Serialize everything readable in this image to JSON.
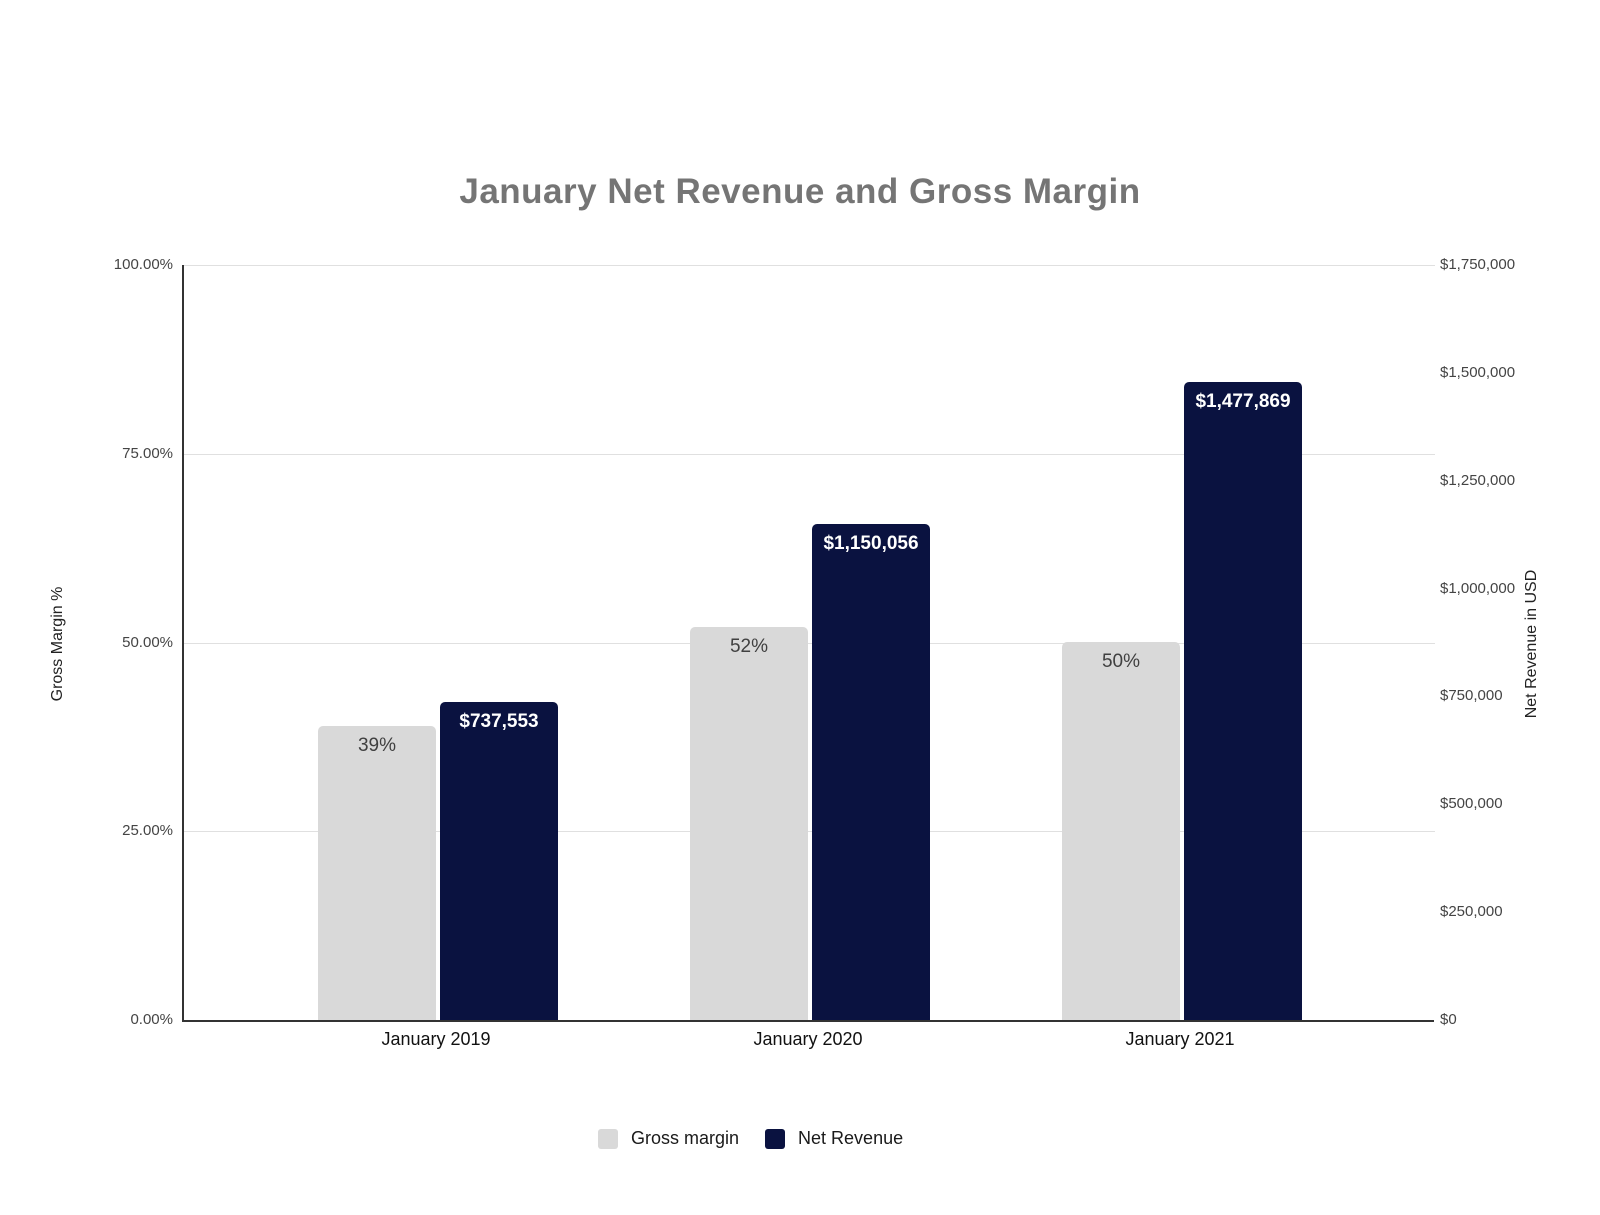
{
  "chart_data": {
    "type": "bar",
    "title": "January Net Revenue and Gross Margin",
    "categories": [
      "January 2019",
      "January 2020",
      "January 2021"
    ],
    "series": [
      {
        "name": "Gross margin",
        "axis": "left",
        "values": [
          39,
          52,
          50
        ],
        "unit": "percent",
        "labels": [
          "39%",
          "52%",
          "50%"
        ],
        "color": "#d9d9d9",
        "label_color": "#404040",
        "label_weight": "400"
      },
      {
        "name": "Net Revenue",
        "axis": "right",
        "values": [
          737553,
          1150056,
          1477869
        ],
        "unit": "USD",
        "labels": [
          "$737,553",
          "$1,150,056",
          "$1,477,869"
        ],
        "color": "#0a1240",
        "label_color": "#ffffff",
        "label_weight": "700"
      }
    ],
    "left_axis": {
      "title": "Gross Margin %",
      "range": [
        0,
        100
      ],
      "tick_labels": [
        "100.00%",
        "75.00%",
        "50.00%",
        "25.00%",
        "0.00%"
      ]
    },
    "right_axis": {
      "title": "Net Revenue in USD",
      "range": [
        0,
        1750000
      ],
      "tick_labels": [
        "$1,750,000",
        "$1,500,000",
        "$1,250,000",
        "$1,000,000",
        "$750,000",
        "$500,000",
        "$250,000",
        "$0"
      ]
    },
    "legend": {
      "position": "bottom",
      "items": [
        {
          "label": "Gross margin",
          "color": "#d9d9d9"
        },
        {
          "label": "Net Revenue",
          "color": "#0a1240"
        }
      ]
    },
    "grid": true,
    "colors": {
      "title_text": "#757575",
      "gridline": "#e0e0e0",
      "axis_line": "#333333",
      "tick_text": "#444444",
      "category_text": "#111111"
    }
  }
}
